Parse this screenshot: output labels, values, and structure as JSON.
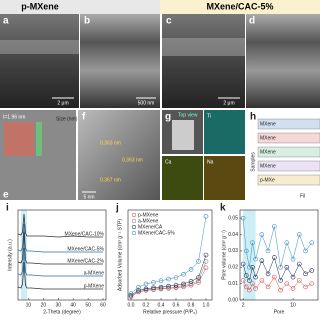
{
  "header": {
    "left": "p-MXene",
    "right": "MXene/CAC-5%"
  },
  "panels": [
    {
      "letter": "a",
      "scale": "2 μm"
    },
    {
      "letter": "b",
      "scale": "500 nm"
    },
    {
      "letter": "c",
      "scale": "2 μm"
    },
    {
      "letter": "d"
    },
    {
      "letter": "e",
      "note": "t=1.96 nm",
      "legend": "Size (nm)"
    },
    {
      "letter": "f",
      "notes": [
        "0.363 nm",
        "0.363 nm",
        "0.367 nm"
      ],
      "scale": "5 nm"
    },
    {
      "letter": "g",
      "notes": [
        "Top view",
        "Ti",
        "Ca",
        "Na"
      ]
    },
    {
      "letter": "h",
      "rows": [
        "MXene",
        "MXene",
        "MXene",
        "MXene",
        "p-MXe"
      ],
      "axis": "Samples",
      "xlabel": "Fil"
    }
  ],
  "plots": {
    "i": {
      "letter": "i",
      "xlabel": "2-Theta (degree)",
      "ylabel": "Intensity (a.u.)",
      "xlim": [
        3,
        62
      ],
      "ylim": [
        0,
        9
      ],
      "xticks": [
        10,
        20,
        30,
        40,
        50,
        60
      ],
      "x": [
        3,
        5,
        6,
        7,
        8,
        9,
        12,
        20,
        30,
        40,
        50,
        60
      ],
      "series": [
        {
          "name": "MXene/CAC-10%",
          "color": "#333333",
          "values": [
            6.6,
            6.5,
            6.8,
            8.6,
            6.7,
            6.4,
            6.4,
            6.4,
            6.3,
            6.4,
            6.3,
            6.3
          ]
        },
        {
          "name": "MXene/CAC-5%",
          "color": "#2f6fb0",
          "values": [
            5,
            4.9,
            5.3,
            7.6,
            5.2,
            4.9,
            4.9,
            4.8,
            4.8,
            4.8,
            4.8,
            4.8
          ]
        },
        {
          "name": "MXene/CAC-2%",
          "color": "#333333",
          "values": [
            3.8,
            3.7,
            4.1,
            6.8,
            4,
            3.7,
            3.7,
            3.6,
            3.6,
            3.6,
            3.6,
            3.6
          ]
        },
        {
          "name": "a-MXene",
          "color": "#2f6fb0",
          "values": [
            2.6,
            2.5,
            2.9,
            5.2,
            2.8,
            2.5,
            2.5,
            2.4,
            2.4,
            2.4,
            2.4,
            2.4
          ]
        },
        {
          "name": "p-MXene",
          "color": "#333333",
          "values": [
            1.3,
            1.2,
            1.6,
            3.8,
            1.5,
            1.2,
            1.2,
            1.1,
            1.1,
            1.1,
            1.1,
            1.1
          ]
        }
      ]
    },
    "j": {
      "letter": "j",
      "xlabel": "Relative pressure (P/P₀)",
      "ylabel": "Adsorbed Volume (cm³ g⁻¹ STP)",
      "xlim": [
        -0.04,
        1.08
      ],
      "ylim": [
        0,
        28
      ],
      "xticks": [
        {
          "value": 0,
          "label": "0.0"
        },
        {
          "value": 0.2,
          "label": "0.2"
        },
        {
          "value": 0.4,
          "label": "0.4"
        },
        {
          "value": 0.6,
          "label": "0.6"
        },
        {
          "value": 0.8,
          "label": "0.8"
        },
        {
          "value": 1,
          "label": "1.0"
        }
      ],
      "x": [
        0,
        0.1,
        0.2,
        0.3,
        0.4,
        0.5,
        0.6,
        0.7,
        0.8,
        0.9,
        1.0
      ],
      "series": [
        {
          "name": "p-MXene",
          "color": "#d9534f",
          "values": [
            1,
            2.5,
            3,
            3.2,
            3.4,
            3.6,
            3.8,
            4.1,
            4.6,
            5.5,
            10
          ]
        },
        {
          "name": "a-MXene",
          "color": "#888888",
          "values": [
            1.2,
            2.6,
            3.2,
            3.4,
            3.6,
            3.8,
            4,
            4.4,
            5,
            6,
            12
          ]
        },
        {
          "name": "MXene/CA",
          "color": "#1f2d5a",
          "values": [
            1.5,
            3,
            3.5,
            3.8,
            4,
            4.3,
            4.6,
            5,
            5.8,
            7,
            14
          ]
        },
        {
          "name": "MXene/CAC-5%",
          "color": "#3a8fc0",
          "values": [
            2,
            4,
            5,
            5.5,
            6,
            6.5,
            7,
            8,
            9.5,
            12,
            26
          ]
        }
      ]
    },
    "k": {
      "letter": "k",
      "xlabel": "Pore",
      "ylabel": "Pore volume (cm³ g⁻¹)",
      "xlim": [
        1.5,
        14
      ],
      "ylim": [
        0,
        0.055
      ],
      "xticks": [
        2,
        10
      ],
      "yticks": [
        {
          "value": 0,
          "label": "0.00"
        },
        {
          "value": 0.01,
          "label": "0.01"
        },
        {
          "value": 0.02,
          "label": "0.02"
        },
        {
          "value": 0.03,
          "label": "0.03"
        },
        {
          "value": 0.04,
          "label": "0.04"
        },
        {
          "value": 0.05,
          "label": "0.05"
        }
      ],
      "x": [
        2,
        2.5,
        3,
        3.5,
        4,
        5,
        6,
        7,
        8,
        9,
        10,
        11,
        12,
        13
      ],
      "series": [
        {
          "name": "p-MXene",
          "color": "#d9534f",
          "values": [
            0.012,
            0.008,
            0.006,
            0.01,
            0.007,
            0.012,
            0.008,
            0.014,
            0.006,
            0.01,
            0.007,
            0.012,
            0.008,
            0.01
          ]
        },
        {
          "name": "MXene/CA",
          "color": "#1f2d5a",
          "values": [
            0.022,
            0.015,
            0.012,
            0.02,
            0.014,
            0.024,
            0.016,
            0.026,
            0.012,
            0.02,
            0.014,
            0.022,
            0.016,
            0.018
          ]
        },
        {
          "name": "MXene/CAC-5%",
          "color": "#3a8fc0",
          "values": [
            0.05,
            0.03,
            0.02,
            0.035,
            0.025,
            0.04,
            0.03,
            0.045,
            0.02,
            0.035,
            0.025,
            0.04,
            0.03,
            0.035
          ]
        }
      ]
    }
  }
}
